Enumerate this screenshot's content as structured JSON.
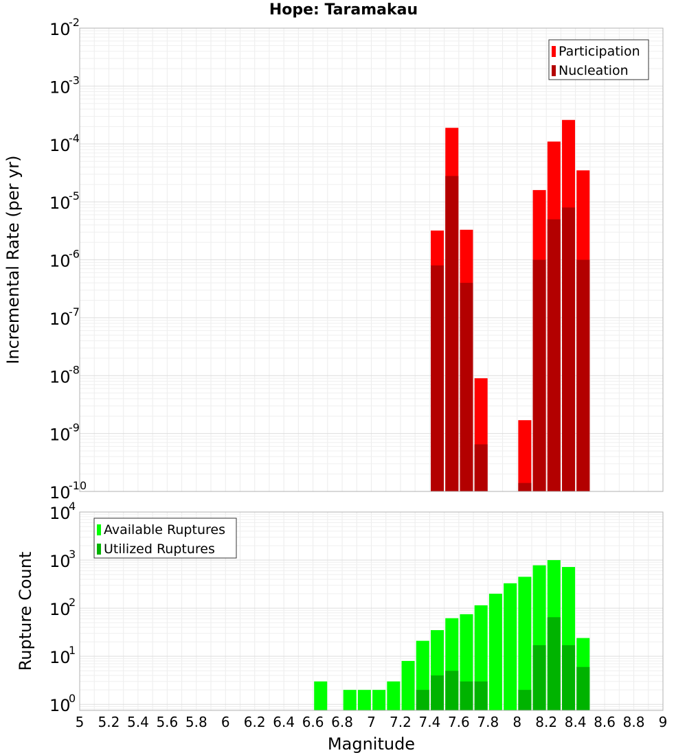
{
  "title": "Hope: Taramakau",
  "chart_data": [
    {
      "type": "bar",
      "name": "rate-panel",
      "ylabel": "Incremental Rate (per yr)",
      "y_scale": "log",
      "ylim": [
        1e-10,
        0.01
      ],
      "xlim": [
        5,
        9
      ],
      "grid": true,
      "legend_position": "top-right",
      "y_ticks": [
        {
          "base": "10",
          "exp": "-10"
        },
        {
          "base": "10",
          "exp": "-9"
        },
        {
          "base": "10",
          "exp": "-8"
        },
        {
          "base": "10",
          "exp": "-7"
        },
        {
          "base": "10",
          "exp": "-6"
        },
        {
          "base": "10",
          "exp": "-5"
        },
        {
          "base": "10",
          "exp": "-4"
        },
        {
          "base": "10",
          "exp": "-3"
        },
        {
          "base": "10",
          "exp": "-2"
        }
      ],
      "series": [
        {
          "name": "Participation",
          "color": "#ff0000",
          "x": [
            7.45,
            7.55,
            7.65,
            7.75,
            8.05,
            8.15,
            8.25,
            8.35,
            8.45
          ],
          "values": [
            3.2e-06,
            0.00019,
            3.3e-06,
            9e-09,
            1.7e-09,
            1.6e-05,
            0.00011,
            0.00026,
            3.5e-05
          ]
        },
        {
          "name": "Nucleation",
          "color": "#b30000",
          "x": [
            7.45,
            7.55,
            7.65,
            7.75,
            8.05,
            8.15,
            8.25,
            8.35,
            8.45
          ],
          "values": [
            8e-07,
            2.8e-05,
            4e-07,
            6.5e-10,
            1.4e-10,
            1e-06,
            5e-06,
            8e-06,
            1e-06
          ]
        }
      ]
    },
    {
      "type": "bar",
      "name": "count-panel",
      "xlabel": "Magnitude",
      "ylabel": "Rupture Count",
      "y_scale": "log",
      "ylim": [
        0.75,
        10000
      ],
      "xlim": [
        5,
        9
      ],
      "grid": true,
      "legend_position": "top-left",
      "x_ticks": [
        "5",
        "5.2",
        "5.4",
        "5.6",
        "5.8",
        "6",
        "6.2",
        "6.4",
        "6.6",
        "6.8",
        "7",
        "7.2",
        "7.4",
        "7.6",
        "7.8",
        "8",
        "8.2",
        "8.4",
        "8.6",
        "8.8",
        "9"
      ],
      "y_ticks": [
        {
          "base": "10",
          "exp": "0"
        },
        {
          "base": "10",
          "exp": "1"
        },
        {
          "base": "10",
          "exp": "2"
        },
        {
          "base": "10",
          "exp": "3"
        },
        {
          "base": "10",
          "exp": "4"
        }
      ],
      "series": [
        {
          "name": "Available Ruptures",
          "color": "#00ff00",
          "x": [
            6.65,
            6.85,
            6.95,
            7.05,
            7.15,
            7.25,
            7.35,
            7.45,
            7.55,
            7.65,
            7.75,
            7.85,
            7.95,
            8.05,
            8.15,
            8.25,
            8.35,
            8.45
          ],
          "values": [
            3,
            2,
            2,
            2,
            3,
            8,
            21,
            35,
            62,
            75,
            115,
            200,
            330,
            450,
            780,
            1000,
            720,
            24
          ]
        },
        {
          "name": "Utilized Ruptures",
          "color": "#00b300",
          "x": [
            7.35,
            7.45,
            7.55,
            7.65,
            7.75,
            8.05,
            8.15,
            8.25,
            8.35,
            8.45
          ],
          "values": [
            2,
            4,
            5,
            3,
            3,
            2,
            17,
            65,
            17,
            6
          ]
        }
      ]
    }
  ]
}
